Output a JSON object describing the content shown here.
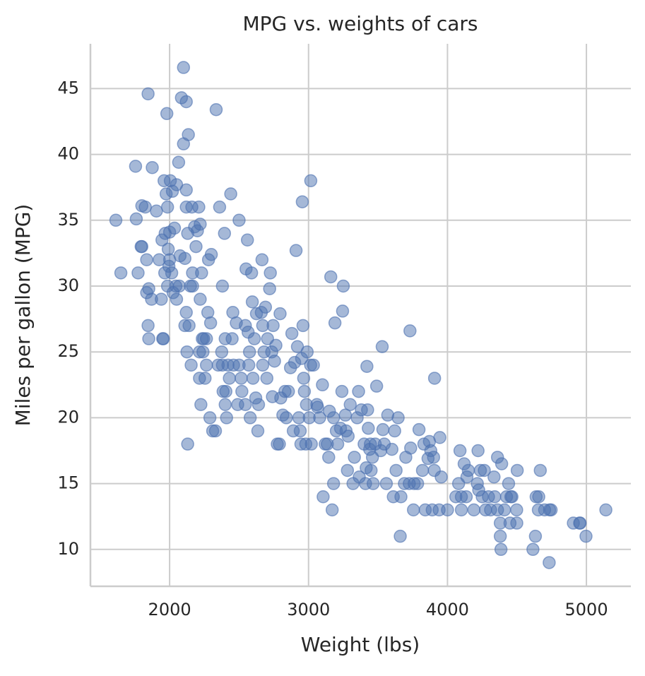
{
  "chart_data": {
    "type": "scatter",
    "title": "MPG vs. weights of cars",
    "xlabel": "Weight (lbs)",
    "ylabel": "Miles per gallon (MPG)",
    "color": "#4c72b0",
    "grid": true,
    "xlim": [
      1430,
      5320
    ],
    "ylim": [
      7.2,
      48.4
    ],
    "xticks": [
      2000,
      3000,
      4000,
      5000
    ],
    "yticks": [
      10,
      15,
      20,
      25,
      30,
      35,
      40,
      45
    ],
    "x": [
      1613,
      1649,
      1755,
      1760,
      1773,
      1795,
      1800,
      1800,
      1825,
      1835,
      1835,
      1845,
      1850,
      1850,
      1845,
      1870,
      1875,
      1905,
      1925,
      1940,
      1945,
      1950,
      1955,
      1960,
      1965,
      1968,
      1975,
      1980,
      1985,
      1985,
      1990,
      1995,
      2000,
      2000,
      2005,
      2015,
      2020,
      2025,
      2035,
      2045,
      2050,
      2050,
      2065,
      2070,
      2075,
      2085,
      2100,
      2100,
      2110,
      2110,
      2120,
      2120,
      2120,
      2120,
      2125,
      2130,
      2130,
      2135,
      2140,
      2150,
      2155,
      2160,
      2165,
      2165,
      2180,
      2190,
      2200,
      2210,
      2215,
      2215,
      2220,
      2220,
      2225,
      2230,
      2235,
      2240,
      2245,
      2255,
      2265,
      2265,
      2275,
      2280,
      2290,
      2295,
      2300,
      2310,
      2330,
      2335,
      2350,
      2360,
      2375,
      2380,
      2380,
      2385,
      2395,
      2400,
      2400,
      2405,
      2410,
      2420,
      2430,
      2440,
      2450,
      2455,
      2460,
      2480,
      2490,
      2500,
      2500,
      2515,
      2520,
      2545,
      2545,
      2550,
      2560,
      2565,
      2570,
      2575,
      2580,
      2590,
      2595,
      2600,
      2610,
      2620,
      2625,
      2635,
      2640,
      2660,
      2665,
      2670,
      2670,
      2680,
      2690,
      2700,
      2705,
      2720,
      2725,
      2735,
      2740,
      2745,
      2755,
      2765,
      2775,
      2790,
      2795,
      2800,
      2815,
      2830,
      2840,
      2855,
      2870,
      2880,
      2890,
      2900,
      2910,
      2920,
      2930,
      2940,
      2945,
      2950,
      2955,
      2960,
      2965,
      2970,
      2980,
      2985,
      2990,
      3005,
      3015,
      3016,
      3020,
      3035,
      3060,
      3065,
      3080,
      3100,
      3105,
      3120,
      3135,
      3145,
      3150,
      3160,
      3170,
      3180,
      3190,
      3180,
      3200,
      3210,
      3230,
      3240,
      3245,
      3250,
      3265,
      3270,
      3280,
      3285,
      3300,
      3320,
      3330,
      3350,
      3360,
      3365,
      3380,
      3400,
      3410,
      3415,
      3420,
      3425,
      3430,
      3440,
      3445,
      3450,
      3460,
      3465,
      3480,
      3490,
      3520,
      3530,
      3535,
      3545,
      3560,
      3570,
      3600,
      3610,
      3620,
      3630,
      3645,
      3660,
      3665,
      3690,
      3700,
      3725,
      3730,
      3735,
      3755,
      3760,
      3785,
      3795,
      3820,
      3830,
      3840,
      3860,
      3870,
      3880,
      3890,
      3900,
      3905,
      3907,
      3940,
      3945,
      3955,
      4000,
      4060,
      4080,
      4090,
      4100,
      4100,
      4120,
      4135,
      4140,
      4150,
      4190,
      4215,
      4220,
      4225,
      4237,
      4250,
      4265,
      4274,
      4295,
      4310,
      4335,
      4340,
      4360,
      4360,
      4380,
      4385,
      4380,
      4390,
      4410,
      4425,
      4440,
      4450,
      4456,
      4464,
      4498,
      4499,
      4502,
      4615,
      4633,
      4638,
      4654,
      4657,
      4668,
      4699,
      4732,
      4735,
      4746,
      4906,
      4951,
      4955,
      4997,
      5140
    ],
    "values": [
      35,
      31,
      39.1,
      35.1,
      31,
      33,
      36.1,
      33,
      36,
      32,
      29.5,
      44.6,
      29.8,
      26,
      27,
      29,
      39,
      35.7,
      32,
      29,
      33.5,
      26,
      26,
      38,
      31,
      34,
      37,
      43.1,
      36,
      30,
      32.8,
      31.5,
      32,
      34.1,
      38,
      31,
      37.2,
      29.5,
      34.4,
      30,
      37.7,
      29,
      39.4,
      30,
      32.3,
      44.3,
      46.6,
      40.8,
      32.1,
      27,
      44,
      36,
      37.3,
      28,
      25,
      34,
      18,
      41.5,
      27,
      30,
      24,
      36,
      31,
      30,
      34.5,
      33,
      34.2,
      36,
      25,
      23,
      34.7,
      29,
      21,
      31,
      26,
      25,
      26,
      23,
      24,
      26,
      28,
      32,
      20,
      27.2,
      32.4,
      19,
      19,
      43.4,
      24,
      36,
      25,
      24,
      30,
      22,
      34,
      26,
      21,
      22,
      20,
      24,
      23,
      37,
      26,
      28,
      24,
      27.2,
      21,
      35,
      24,
      23,
      22,
      27,
      21,
      31.3,
      33.5,
      26.5,
      24,
      25,
      20,
      31,
      28.8,
      23,
      26,
      21.5,
      27.9,
      19,
      21,
      28,
      32,
      24,
      27,
      25,
      28.4,
      23,
      26,
      29.8,
      31,
      25,
      21.6,
      27,
      24.3,
      25.5,
      18,
      18,
      27.9,
      21.5,
      20.2,
      22,
      20,
      22,
      23.8,
      26.4,
      19,
      24.2,
      32.7,
      25.4,
      20,
      19,
      18,
      24.5,
      36.4,
      27,
      23,
      22,
      18,
      21,
      25,
      20,
      24,
      38,
      18,
      24,
      21,
      20.8,
      20,
      22.5,
      14,
      18,
      18,
      17,
      20.5,
      30.7,
      13,
      20,
      27.2,
      15,
      19,
      18,
      19.2,
      22,
      28.1,
      30,
      20.2,
      19,
      16,
      18.6,
      21,
      15,
      17,
      20,
      22,
      15.5,
      20.6,
      18,
      15,
      16.2,
      23.9,
      20.6,
      19.2,
      17.6,
      18,
      16,
      17,
      15,
      18,
      22.4,
      17.5,
      25.4,
      19.1,
      18,
      15,
      20.2,
      17.6,
      14,
      19,
      16,
      20,
      11,
      14,
      15,
      17,
      15,
      26.6,
      17.7,
      13,
      15,
      15,
      19.1,
      16,
      18,
      13,
      16.9,
      18.2,
      17.5,
      13,
      17,
      16,
      23,
      13,
      18.5,
      15.5,
      13,
      14,
      15,
      17.5,
      13,
      14,
      16.5,
      14,
      15.5,
      16,
      13,
      15,
      17.5,
      14.5,
      16,
      14,
      16,
      13,
      14,
      13,
      15.5,
      14,
      13,
      17,
      12,
      10,
      11,
      16.5,
      13,
      14,
      15,
      12,
      14,
      14,
      13,
      12,
      16,
      10,
      11,
      14,
      13,
      14,
      16,
      13,
      9,
      13,
      13,
      12,
      12,
      12,
      11,
      13
    ]
  }
}
